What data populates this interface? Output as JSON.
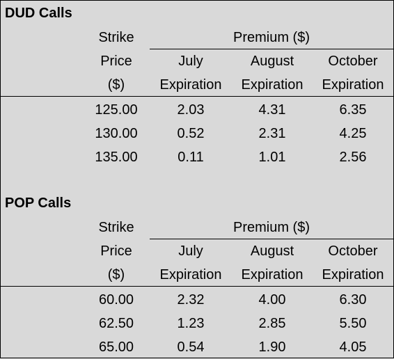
{
  "tables": [
    {
      "title": "DUD Calls",
      "header": {
        "strike_line1": "Strike",
        "strike_line2": "Price",
        "strike_line3": "($)",
        "premium": "Premium ($)",
        "july_line1": "July",
        "august_line1": "August",
        "october_line1": "October",
        "expiration": "Expiration"
      },
      "rows": [
        {
          "strike": "125.00",
          "july": "2.03",
          "august": "4.31",
          "october": "6.35"
        },
        {
          "strike": "130.00",
          "july": "0.52",
          "august": "2.31",
          "october": "4.25"
        },
        {
          "strike": "135.00",
          "july": "0.11",
          "august": "1.01",
          "october": "2.56"
        }
      ]
    },
    {
      "title": "POP Calls",
      "header": {
        "strike_line1": "Strike",
        "strike_line2": "Price",
        "strike_line3": "($)",
        "premium": "Premium ($)",
        "july_line1": "July",
        "august_line1": "August",
        "october_line1": "October",
        "expiration": "Expiration"
      },
      "rows": [
        {
          "strike": "60.00",
          "july": "2.32",
          "august": "4.00",
          "october": "6.30"
        },
        {
          "strike": "62.50",
          "july": "1.23",
          "august": "2.85",
          "october": "5.50"
        },
        {
          "strike": "65.00",
          "july": "0.54",
          "august": "1.90",
          "october": "4.05"
        }
      ]
    }
  ],
  "colors": {
    "background": "#d9d9d9",
    "text": "#000000",
    "rule": "#000000"
  }
}
